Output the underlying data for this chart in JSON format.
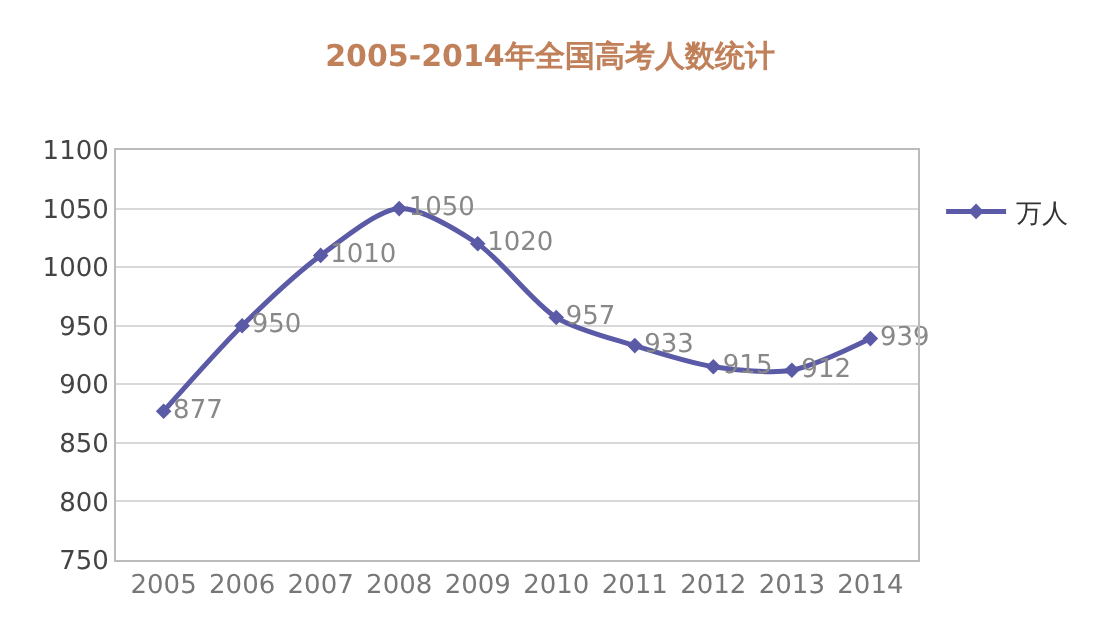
{
  "chart_data": {
    "type": "line",
    "title": "2005-2014年全国高考人数统计",
    "categories": [
      "2005",
      "2006",
      "2007",
      "2008",
      "2009",
      "2010",
      "2011",
      "2012",
      "2013",
      "2014"
    ],
    "series": [
      {
        "name": "万人",
        "color": "#5b5aa6",
        "values": [
          877,
          950,
          1010,
          1050,
          1020,
          957,
          933,
          915,
          912,
          939
        ]
      }
    ],
    "ylim": [
      750,
      1100
    ],
    "yticks": [
      750,
      800,
      850,
      900,
      950,
      1000,
      1050,
      1100
    ],
    "grid": "y",
    "legend": "right",
    "marker": "diamond",
    "line_style": "solid",
    "data_labels": true
  }
}
